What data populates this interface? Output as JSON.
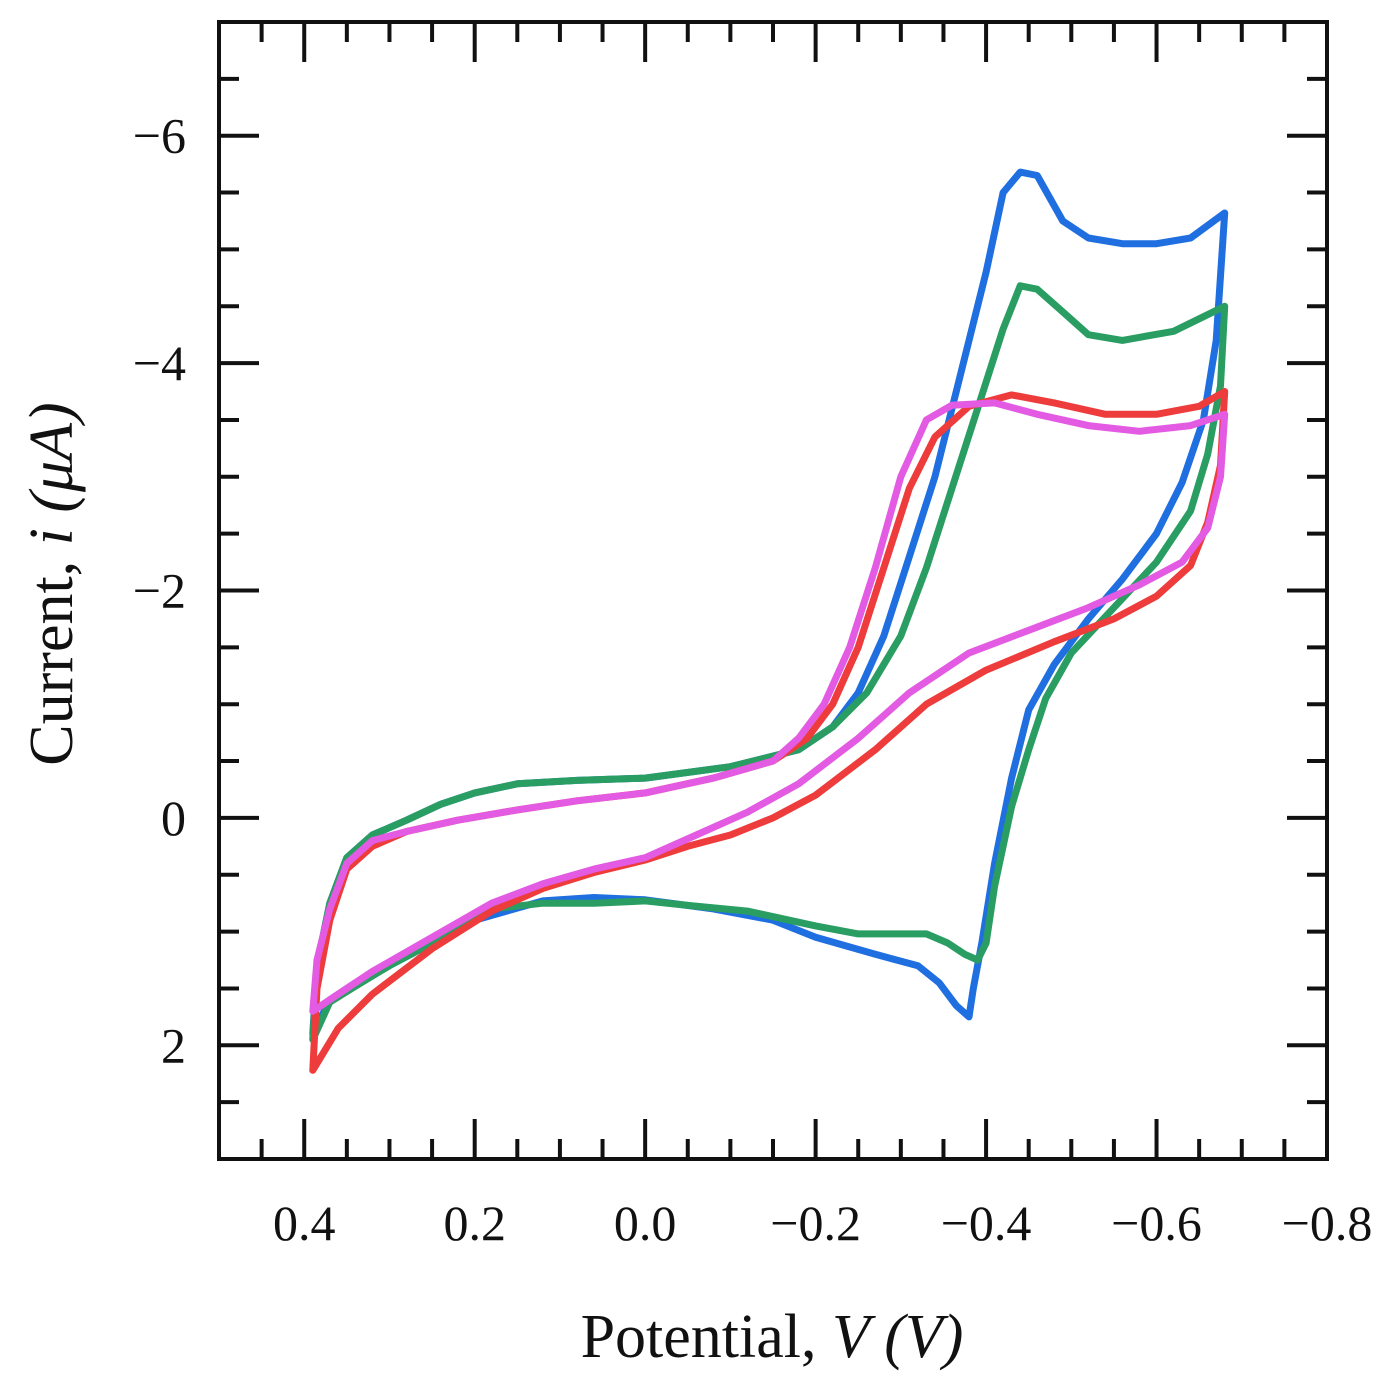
{
  "chart_data": {
    "type": "line",
    "title": "",
    "xlabel": {
      "prefix": "Potential, ",
      "symbol": "V",
      "unit": " (V)"
    },
    "ylabel": {
      "prefix": "Current, ",
      "symbol": "i",
      "unit": " (μA)"
    },
    "xlim": [
      0.5,
      -0.8
    ],
    "ylim": [
      3,
      -7
    ],
    "x_axis_reversed": true,
    "y_axis_reversed": true,
    "x_ticks": [
      0.4,
      0.2,
      0.0,
      -0.2,
      -0.4,
      -0.6,
      -0.8
    ],
    "x_tick_labels": [
      "0.4",
      "0.2",
      "0.0",
      "−0.2",
      "−0.4",
      "−0.6",
      "−0.8"
    ],
    "y_ticks": [
      -6,
      -4,
      -2,
      0,
      2
    ],
    "y_tick_labels": [
      "−6",
      "−4",
      "−2",
      "0",
      "2"
    ],
    "x_minor_step": 0.05,
    "y_minor_step": 0.5,
    "grid": false,
    "legend": "none",
    "series": [
      {
        "name": "blue",
        "color": "#1f6fe0",
        "points": [
          [
            0.0,
            -0.35
          ],
          [
            -0.1,
            -0.45
          ],
          [
            -0.18,
            -0.6
          ],
          [
            -0.22,
            -0.8
          ],
          [
            -0.25,
            -1.1
          ],
          [
            -0.28,
            -1.6
          ],
          [
            -0.31,
            -2.3
          ],
          [
            -0.34,
            -3.0
          ],
          [
            -0.37,
            -3.9
          ],
          [
            -0.4,
            -4.8
          ],
          [
            -0.42,
            -5.5
          ],
          [
            -0.44,
            -5.68
          ],
          [
            -0.46,
            -5.65
          ],
          [
            -0.49,
            -5.25
          ],
          [
            -0.52,
            -5.1
          ],
          [
            -0.56,
            -5.05
          ],
          [
            -0.6,
            -5.05
          ],
          [
            -0.64,
            -5.1
          ],
          [
            -0.68,
            -5.32
          ],
          [
            -0.67,
            -4.2
          ],
          [
            -0.655,
            -3.5
          ],
          [
            -0.63,
            -2.95
          ],
          [
            -0.6,
            -2.5
          ],
          [
            -0.56,
            -2.1
          ],
          [
            -0.52,
            -1.75
          ],
          [
            -0.48,
            -1.35
          ],
          [
            -0.45,
            -0.95
          ],
          [
            -0.43,
            -0.35
          ],
          [
            -0.41,
            0.4
          ],
          [
            -0.395,
            1.1
          ],
          [
            -0.385,
            1.5
          ],
          [
            -0.38,
            1.75
          ],
          [
            -0.365,
            1.65
          ],
          [
            -0.345,
            1.45
          ],
          [
            -0.32,
            1.3
          ],
          [
            -0.27,
            1.2
          ],
          [
            -0.2,
            1.05
          ],
          [
            -0.15,
            0.9
          ],
          [
            -0.08,
            0.8
          ],
          [
            0.0,
            0.72
          ],
          [
            0.06,
            0.7
          ],
          [
            0.12,
            0.73
          ],
          [
            0.2,
            0.9
          ],
          [
            0.28,
            1.22
          ],
          [
            0.34,
            1.45
          ],
          [
            0.37,
            1.6
          ],
          [
            0.39,
            1.9
          ],
          [
            0.385,
            1.3
          ],
          [
            0.37,
            0.75
          ],
          [
            0.35,
            0.35
          ],
          [
            0.32,
            0.15
          ],
          [
            0.28,
            0.02
          ],
          [
            0.24,
            -0.12
          ],
          [
            0.2,
            -0.22
          ],
          [
            0.15,
            -0.3
          ],
          [
            0.08,
            -0.33
          ],
          [
            0.0,
            -0.35
          ]
        ]
      },
      {
        "name": "green",
        "color": "#2a9d62",
        "points": [
          [
            0.0,
            -0.35
          ],
          [
            -0.1,
            -0.45
          ],
          [
            -0.18,
            -0.6
          ],
          [
            -0.22,
            -0.8
          ],
          [
            -0.26,
            -1.1
          ],
          [
            -0.3,
            -1.6
          ],
          [
            -0.33,
            -2.2
          ],
          [
            -0.36,
            -2.9
          ],
          [
            -0.39,
            -3.6
          ],
          [
            -0.42,
            -4.3
          ],
          [
            -0.44,
            -4.68
          ],
          [
            -0.46,
            -4.65
          ],
          [
            -0.49,
            -4.45
          ],
          [
            -0.52,
            -4.25
          ],
          [
            -0.56,
            -4.2
          ],
          [
            -0.62,
            -4.28
          ],
          [
            -0.68,
            -4.5
          ],
          [
            -0.675,
            -3.8
          ],
          [
            -0.66,
            -3.2
          ],
          [
            -0.64,
            -2.7
          ],
          [
            -0.6,
            -2.25
          ],
          [
            -0.55,
            -1.85
          ],
          [
            -0.5,
            -1.45
          ],
          [
            -0.47,
            -1.05
          ],
          [
            -0.45,
            -0.6
          ],
          [
            -0.43,
            -0.1
          ],
          [
            -0.41,
            0.6
          ],
          [
            -0.4,
            1.1
          ],
          [
            -0.39,
            1.25
          ],
          [
            -0.375,
            1.2
          ],
          [
            -0.355,
            1.1
          ],
          [
            -0.33,
            1.02
          ],
          [
            -0.3,
            1.02
          ],
          [
            -0.25,
            1.02
          ],
          [
            -0.2,
            0.95
          ],
          [
            -0.12,
            0.82
          ],
          [
            -0.05,
            0.77
          ],
          [
            0.0,
            0.73
          ],
          [
            0.06,
            0.75
          ],
          [
            0.12,
            0.75
          ],
          [
            0.18,
            0.8
          ],
          [
            0.25,
            1.1
          ],
          [
            0.3,
            1.3
          ],
          [
            0.34,
            1.48
          ],
          [
            0.37,
            1.62
          ],
          [
            0.39,
            1.95
          ],
          [
            0.385,
            1.3
          ],
          [
            0.37,
            0.75
          ],
          [
            0.35,
            0.35
          ],
          [
            0.32,
            0.15
          ],
          [
            0.28,
            0.02
          ],
          [
            0.24,
            -0.12
          ],
          [
            0.2,
            -0.22
          ],
          [
            0.15,
            -0.3
          ],
          [
            0.08,
            -0.33
          ],
          [
            0.0,
            -0.35
          ]
        ]
      },
      {
        "name": "red",
        "color": "#ee3b3b",
        "points": [
          [
            0.0,
            -0.22
          ],
          [
            -0.08,
            -0.35
          ],
          [
            -0.15,
            -0.5
          ],
          [
            -0.19,
            -0.7
          ],
          [
            -0.22,
            -1.0
          ],
          [
            -0.25,
            -1.5
          ],
          [
            -0.28,
            -2.2
          ],
          [
            -0.31,
            -2.9
          ],
          [
            -0.34,
            -3.35
          ],
          [
            -0.38,
            -3.62
          ],
          [
            -0.43,
            -3.72
          ],
          [
            -0.48,
            -3.65
          ],
          [
            -0.54,
            -3.55
          ],
          [
            -0.6,
            -3.55
          ],
          [
            -0.65,
            -3.62
          ],
          [
            -0.68,
            -3.75
          ],
          [
            -0.675,
            -3.1
          ],
          [
            -0.66,
            -2.6
          ],
          [
            -0.64,
            -2.22
          ],
          [
            -0.6,
            -1.95
          ],
          [
            -0.55,
            -1.75
          ],
          [
            -0.48,
            -1.55
          ],
          [
            -0.4,
            -1.3
          ],
          [
            -0.33,
            -1.0
          ],
          [
            -0.27,
            -0.6
          ],
          [
            -0.2,
            -0.2
          ],
          [
            -0.15,
            0.0
          ],
          [
            -0.1,
            0.15
          ],
          [
            -0.05,
            0.25
          ],
          [
            0.0,
            0.37
          ],
          [
            0.06,
            0.48
          ],
          [
            0.12,
            0.62
          ],
          [
            0.18,
            0.82
          ],
          [
            0.25,
            1.15
          ],
          [
            0.32,
            1.55
          ],
          [
            0.36,
            1.85
          ],
          [
            0.39,
            2.22
          ],
          [
            0.385,
            1.5
          ],
          [
            0.37,
            0.9
          ],
          [
            0.35,
            0.45
          ],
          [
            0.32,
            0.25
          ],
          [
            0.28,
            0.12
          ],
          [
            0.22,
            0.02
          ],
          [
            0.15,
            -0.07
          ],
          [
            0.08,
            -0.15
          ],
          [
            0.0,
            -0.22
          ]
        ]
      },
      {
        "name": "magenta",
        "color": "#e35ae3",
        "points": [
          [
            0.0,
            -0.22
          ],
          [
            -0.08,
            -0.35
          ],
          [
            -0.15,
            -0.5
          ],
          [
            -0.18,
            -0.7
          ],
          [
            -0.21,
            -1.0
          ],
          [
            -0.24,
            -1.5
          ],
          [
            -0.27,
            -2.2
          ],
          [
            -0.3,
            -3.0
          ],
          [
            -0.33,
            -3.5
          ],
          [
            -0.36,
            -3.63
          ],
          [
            -0.41,
            -3.65
          ],
          [
            -0.46,
            -3.55
          ],
          [
            -0.52,
            -3.45
          ],
          [
            -0.58,
            -3.4
          ],
          [
            -0.64,
            -3.45
          ],
          [
            -0.68,
            -3.55
          ],
          [
            -0.675,
            -3.0
          ],
          [
            -0.66,
            -2.55
          ],
          [
            -0.63,
            -2.25
          ],
          [
            -0.58,
            -2.05
          ],
          [
            -0.52,
            -1.85
          ],
          [
            -0.45,
            -1.65
          ],
          [
            -0.38,
            -1.45
          ],
          [
            -0.31,
            -1.1
          ],
          [
            -0.25,
            -0.7
          ],
          [
            -0.18,
            -0.3
          ],
          [
            -0.12,
            -0.05
          ],
          [
            -0.06,
            0.15
          ],
          [
            0.0,
            0.35
          ],
          [
            0.06,
            0.45
          ],
          [
            0.12,
            0.58
          ],
          [
            0.18,
            0.75
          ],
          [
            0.25,
            1.05
          ],
          [
            0.32,
            1.35
          ],
          [
            0.36,
            1.55
          ],
          [
            0.39,
            1.7
          ],
          [
            0.385,
            1.25
          ],
          [
            0.37,
            0.8
          ],
          [
            0.35,
            0.4
          ],
          [
            0.32,
            0.2
          ],
          [
            0.28,
            0.12
          ],
          [
            0.22,
            0.02
          ],
          [
            0.15,
            -0.07
          ],
          [
            0.08,
            -0.15
          ],
          [
            0.0,
            -0.22
          ]
        ]
      }
    ]
  }
}
